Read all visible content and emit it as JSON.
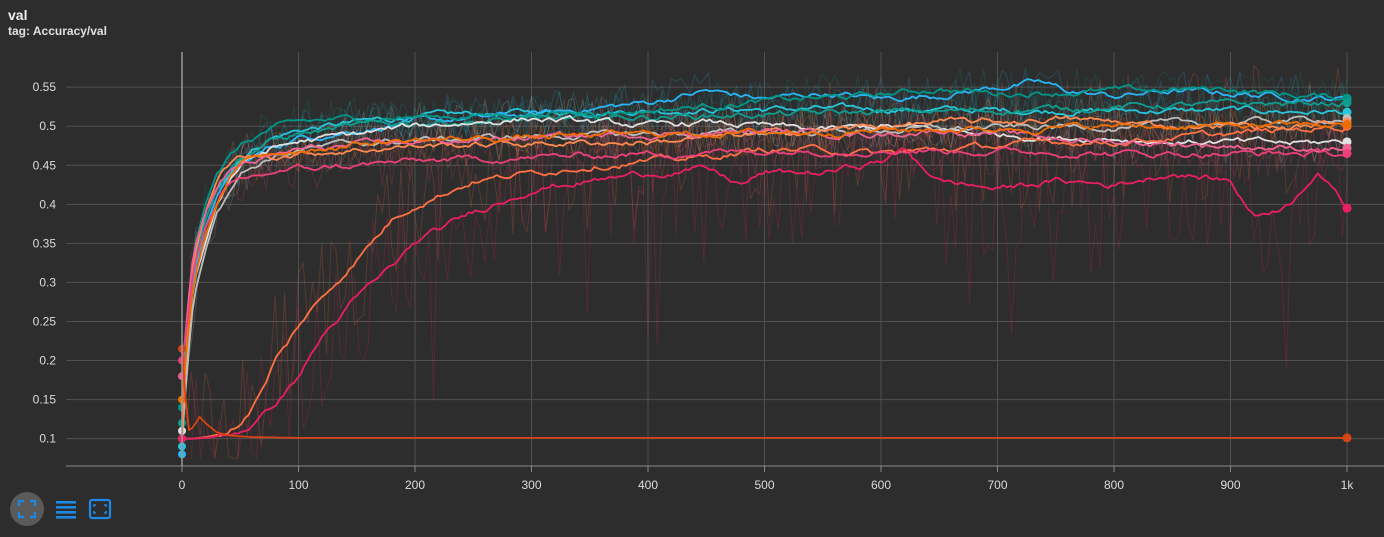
{
  "card": {
    "title": "val",
    "tag": "tag: Accuracy/val"
  },
  "colors": {
    "background": "#2d2d2d",
    "grid": "#505050",
    "axis": "#8a8a8a",
    "toolbar_icon": "#1e88e5"
  },
  "toolbar": {
    "buttons": [
      {
        "icon": "fit-domain-icon",
        "active": true
      },
      {
        "icon": "list-lines-icon",
        "active": false
      },
      {
        "icon": "zoom-box-icon",
        "active": false
      }
    ]
  },
  "chart_data": {
    "type": "line",
    "title": "val",
    "xlabel": "",
    "ylabel": "",
    "xlim": [
      -100,
      1000
    ],
    "ylim": [
      0.065,
      0.595
    ],
    "x_ticks": [
      0,
      100,
      200,
      300,
      400,
      500,
      600,
      700,
      800,
      900,
      1000
    ],
    "x_tick_labels": [
      "0",
      "100",
      "200",
      "300",
      "400",
      "500",
      "600",
      "700",
      "800",
      "900",
      "1k"
    ],
    "y_ticks": [
      0.1,
      0.15,
      0.2,
      0.25,
      0.3,
      0.35,
      0.4,
      0.45,
      0.5,
      0.55
    ],
    "y_tick_labels": [
      "0.1",
      "0.15",
      "0.2",
      "0.25",
      "0.3",
      "0.35",
      "0.4",
      "0.45",
      "0.5",
      "0.55"
    ],
    "grid": true,
    "smoothed": true,
    "series": [
      {
        "color": "#26c6da",
        "x": [
          0,
          5,
          10,
          20,
          30,
          40,
          50,
          75,
          100,
          150,
          200,
          300,
          400,
          500,
          600,
          700,
          800,
          900,
          1000
        ],
        "y": [
          0.09,
          0.26,
          0.33,
          0.38,
          0.42,
          0.44,
          0.46,
          0.485,
          0.495,
          0.505,
          0.512,
          0.518,
          0.52,
          0.522,
          0.522,
          0.52,
          0.52,
          0.52,
          0.518
        ]
      },
      {
        "color": "#29b6f6",
        "x": [
          0,
          5,
          10,
          20,
          30,
          40,
          50,
          75,
          100,
          150,
          200,
          250,
          300,
          400,
          450,
          500,
          550,
          600,
          650,
          700,
          735,
          760,
          800,
          850,
          900,
          950,
          1000
        ],
        "y": [
          0.08,
          0.24,
          0.31,
          0.37,
          0.41,
          0.43,
          0.45,
          0.472,
          0.485,
          0.495,
          0.505,
          0.51,
          0.515,
          0.53,
          0.545,
          0.535,
          0.542,
          0.535,
          0.54,
          0.55,
          0.556,
          0.545,
          0.538,
          0.545,
          0.542,
          0.538,
          0.535
        ]
      },
      {
        "color": "#009688",
        "x": [
          0,
          5,
          10,
          20,
          30,
          40,
          50,
          75,
          100,
          150,
          200,
          300,
          400,
          500,
          600,
          650,
          700,
          800,
          900,
          950,
          1000
        ],
        "y": [
          0.14,
          0.27,
          0.34,
          0.4,
          0.44,
          0.46,
          0.475,
          0.495,
          0.505,
          0.51,
          0.512,
          0.515,
          0.52,
          0.532,
          0.54,
          0.548,
          0.542,
          0.545,
          0.548,
          0.54,
          0.536
        ]
      },
      {
        "color": "#0f9d8f",
        "x": [
          0,
          5,
          10,
          20,
          30,
          40,
          50,
          75,
          100,
          150,
          200,
          300,
          400,
          500,
          600,
          700,
          800,
          900,
          1000
        ],
        "y": [
          0.12,
          0.25,
          0.32,
          0.38,
          0.42,
          0.445,
          0.46,
          0.48,
          0.49,
          0.5,
          0.505,
          0.508,
          0.512,
          0.515,
          0.518,
          0.52,
          0.525,
          0.528,
          0.53
        ]
      },
      {
        "color": "#e0e0e0",
        "x": [
          0,
          5,
          10,
          20,
          30,
          40,
          50,
          75,
          100,
          150,
          200,
          250,
          300,
          350,
          400,
          450,
          500,
          550,
          600,
          650,
          700,
          750,
          800,
          850,
          900,
          950,
          1000
        ],
        "y": [
          0.11,
          0.22,
          0.3,
          0.35,
          0.4,
          0.43,
          0.45,
          0.47,
          0.48,
          0.49,
          0.5,
          0.505,
          0.51,
          0.505,
          0.5,
          0.505,
          0.5,
          0.495,
          0.5,
          0.495,
          0.49,
          0.485,
          0.485,
          0.48,
          0.48,
          0.478,
          0.48
        ]
      },
      {
        "color": "#bdbdbd",
        "x": [
          0,
          5,
          10,
          20,
          30,
          40,
          50,
          75,
          100,
          150,
          200,
          300,
          400,
          500,
          600,
          700,
          800,
          900,
          1000
        ],
        "y": [
          0.1,
          0.2,
          0.28,
          0.34,
          0.39,
          0.42,
          0.44,
          0.46,
          0.47,
          0.478,
          0.482,
          0.487,
          0.49,
          0.492,
          0.495,
          0.498,
          0.5,
          0.505,
          0.51
        ]
      },
      {
        "color": "#ff7043",
        "x": [
          0,
          10,
          20,
          30,
          40,
          50,
          60,
          70,
          80,
          90,
          100,
          120,
          150,
          180,
          200,
          250,
          300,
          350,
          400,
          450,
          500,
          550,
          600,
          650,
          700,
          750,
          800,
          850,
          900,
          950,
          1000
        ],
        "y": [
          0.1,
          0.1,
          0.102,
          0.105,
          0.11,
          0.12,
          0.14,
          0.165,
          0.2,
          0.22,
          0.245,
          0.28,
          0.33,
          0.38,
          0.4,
          0.43,
          0.44,
          0.45,
          0.455,
          0.46,
          0.47,
          0.47,
          0.465,
          0.47,
          0.475,
          0.48,
          0.48,
          0.485,
          0.49,
          0.495,
          0.5
        ]
      },
      {
        "color": "#ff8a50",
        "x": [
          0,
          5,
          10,
          20,
          30,
          40,
          50,
          75,
          100,
          150,
          200,
          300,
          400,
          500,
          550,
          600,
          650,
          700,
          750,
          800,
          850,
          900,
          950,
          1000
        ],
        "y": [
          0.1,
          0.25,
          0.33,
          0.39,
          0.43,
          0.45,
          0.46,
          0.462,
          0.465,
          0.47,
          0.475,
          0.478,
          0.48,
          0.49,
          0.495,
          0.5,
          0.505,
          0.505,
          0.51,
          0.505,
          0.5,
          0.502,
          0.498,
          0.505
        ]
      },
      {
        "color": "#e91e63",
        "x": [
          0,
          10,
          20,
          30,
          40,
          50,
          60,
          70,
          80,
          100,
          120,
          150,
          180,
          200,
          250,
          300,
          350,
          400,
          450,
          480,
          500,
          550,
          600,
          620,
          650,
          700,
          750,
          800,
          850,
          900,
          920,
          950,
          975,
          1000
        ],
        "y": [
          0.1,
          0.1,
          0.101,
          0.103,
          0.106,
          0.11,
          0.118,
          0.13,
          0.145,
          0.18,
          0.23,
          0.28,
          0.32,
          0.35,
          0.39,
          0.42,
          0.43,
          0.44,
          0.445,
          0.425,
          0.44,
          0.44,
          0.455,
          0.47,
          0.43,
          0.42,
          0.43,
          0.425,
          0.44,
          0.43,
          0.385,
          0.4,
          0.445,
          0.395
        ]
      },
      {
        "color": "#f06292",
        "x": [
          0,
          5,
          10,
          20,
          30,
          40,
          50,
          75,
          100,
          150,
          200,
          300,
          400,
          500,
          600,
          650,
          700,
          750,
          800,
          850,
          900,
          950,
          1000
        ],
        "y": [
          0.18,
          0.27,
          0.34,
          0.39,
          0.42,
          0.44,
          0.45,
          0.46,
          0.47,
          0.475,
          0.48,
          0.485,
          0.49,
          0.493,
          0.49,
          0.495,
          0.49,
          0.485,
          0.48,
          0.478,
          0.475,
          0.472,
          0.472
        ]
      },
      {
        "color": "#ec407a",
        "x": [
          0,
          5,
          10,
          20,
          30,
          40,
          50,
          75,
          100,
          150,
          200,
          300,
          400,
          500,
          600,
          700,
          800,
          900,
          1000
        ],
        "y": [
          0.2,
          0.25,
          0.32,
          0.37,
          0.4,
          0.42,
          0.43,
          0.44,
          0.445,
          0.45,
          0.455,
          0.46,
          0.465,
          0.468,
          0.47,
          0.468,
          0.465,
          0.465,
          0.465
        ]
      },
      {
        "color": "#ef6c00",
        "x": [
          0,
          5,
          10,
          20,
          30,
          40,
          50,
          75,
          100,
          150,
          200,
          300,
          400,
          500,
          600,
          700,
          800,
          900,
          1000
        ],
        "y": [
          0.15,
          0.23,
          0.3,
          0.36,
          0.4,
          0.43,
          0.45,
          0.465,
          0.47,
          0.478,
          0.482,
          0.486,
          0.49,
          0.492,
          0.495,
          0.497,
          0.5,
          0.5,
          0.502
        ]
      },
      {
        "color": "#d84315",
        "x": [
          0,
          5,
          10,
          15,
          20,
          30,
          40,
          60,
          100,
          200,
          400,
          600,
          800,
          1000
        ],
        "y": [
          0.215,
          0.11,
          0.115,
          0.128,
          0.12,
          0.108,
          0.104,
          0.102,
          0.101,
          0.101,
          0.101,
          0.101,
          0.101,
          0.101
        ]
      }
    ]
  }
}
